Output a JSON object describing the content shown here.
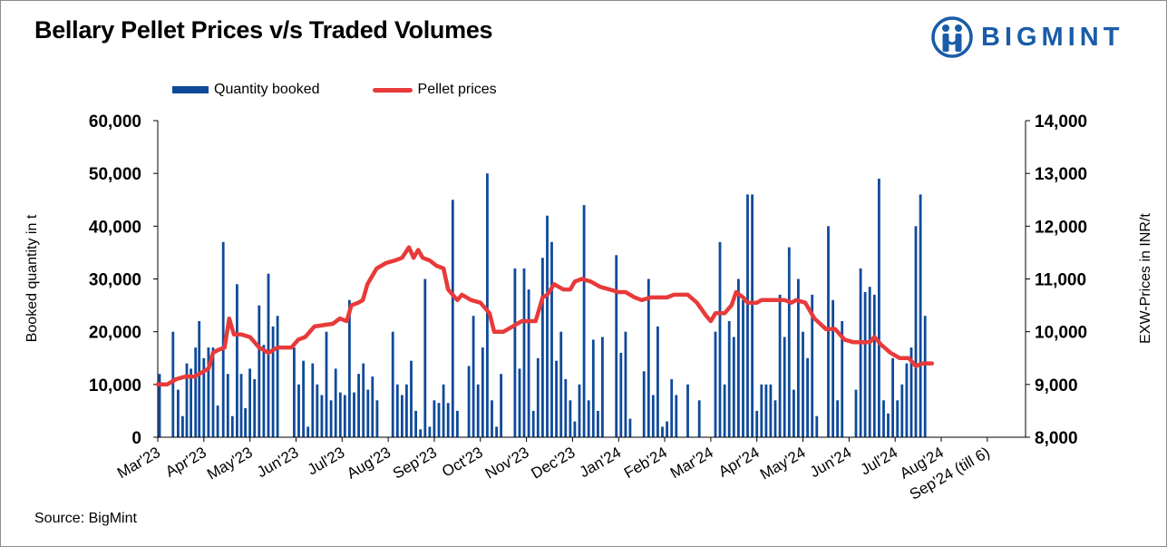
{
  "title": "Bellary Pellet Prices v/s Traded Volumes",
  "logo": {
    "text": "BIGMINT",
    "icon": "bigmint-logo-icon",
    "color": "#1a5ca8"
  },
  "source": "Source: BigMint",
  "colors": {
    "bars": "#0e4a9a",
    "line": "#e83a3a"
  },
  "chart_data": {
    "type": "bar",
    "title": "Bellary Pellet Prices v/s Traded Volumes",
    "legend": {
      "position": "top-left",
      "entries": [
        "Quantity booked",
        "Pellet prices"
      ]
    },
    "y_left": {
      "label": "Booked quantity in t",
      "ylim": [
        0,
        60000
      ],
      "ticks": [
        "0",
        "10,000",
        "20,000",
        "30,000",
        "40,000",
        "50,000",
        "60,000"
      ]
    },
    "y_right": {
      "label": "EXW-Prices in INR/t",
      "ylim": [
        8000,
        14000
      ],
      "ticks": [
        "8,000",
        "9,000",
        "10,000",
        "11,000",
        "12,000",
        "13,000",
        "14,000"
      ]
    },
    "x_ticks": [
      "Mar'23",
      "Apr'23",
      "May'23",
      "Jun'23",
      "Jul'23",
      "Aug'23",
      "Sep'23",
      "Oct'23",
      "Nov'23",
      "Dec'23",
      "Jan'24",
      "Feb'24",
      "Mar'24",
      "Apr'24",
      "May'24",
      "Jun'24",
      "Jul'24",
      "Aug'24",
      "Sep'24 (till 6)"
    ],
    "x_range": [
      0,
      18.83
    ],
    "series": [
      {
        "name": "Quantity booked",
        "type": "bar",
        "axis": "left",
        "points": [
          [
            0.04,
            12000
          ],
          [
            0.33,
            20000
          ],
          [
            0.44,
            9000
          ],
          [
            0.54,
            4000
          ],
          [
            0.63,
            14000
          ],
          [
            0.72,
            13000
          ],
          [
            0.82,
            17000
          ],
          [
            0.9,
            22000
          ],
          [
            1.0,
            15000
          ],
          [
            1.1,
            17000
          ],
          [
            1.2,
            17000
          ],
          [
            1.3,
            6000
          ],
          [
            1.42,
            37000
          ],
          [
            1.52,
            12000
          ],
          [
            1.62,
            4000
          ],
          [
            1.72,
            29000
          ],
          [
            1.81,
            12000
          ],
          [
            1.9,
            5500
          ],
          [
            2.0,
            13000
          ],
          [
            2.1,
            11000
          ],
          [
            2.2,
            25000
          ],
          [
            2.3,
            17500
          ],
          [
            2.4,
            31000
          ],
          [
            2.5,
            21000
          ],
          [
            2.6,
            23000
          ],
          [
            2.96,
            17000
          ],
          [
            3.06,
            10000
          ],
          [
            3.16,
            14500
          ],
          [
            3.26,
            2000
          ],
          [
            3.36,
            14000
          ],
          [
            3.46,
            10000
          ],
          [
            3.56,
            8000
          ],
          [
            3.66,
            20000
          ],
          [
            3.76,
            7000
          ],
          [
            3.86,
            13000
          ],
          [
            3.96,
            8500
          ],
          [
            4.06,
            8000
          ],
          [
            4.16,
            26000
          ],
          [
            4.26,
            8500
          ],
          [
            4.36,
            12000
          ],
          [
            4.46,
            14000
          ],
          [
            4.56,
            9000
          ],
          [
            4.66,
            11500
          ],
          [
            4.76,
            7000
          ],
          [
            5.1,
            20000
          ],
          [
            5.2,
            10000
          ],
          [
            5.3,
            8000
          ],
          [
            5.4,
            10000
          ],
          [
            5.5,
            14500
          ],
          [
            5.6,
            5000
          ],
          [
            5.7,
            1500
          ],
          [
            5.8,
            30000
          ],
          [
            5.9,
            2000
          ],
          [
            6.0,
            7000
          ],
          [
            6.1,
            6500
          ],
          [
            6.2,
            10000
          ],
          [
            6.3,
            6500
          ],
          [
            6.4,
            45000
          ],
          [
            6.5,
            5000
          ],
          [
            6.75,
            13500
          ],
          [
            6.85,
            23000
          ],
          [
            6.95,
            10000
          ],
          [
            7.05,
            17000
          ],
          [
            7.15,
            50000
          ],
          [
            7.25,
            7000
          ],
          [
            7.35,
            2000
          ],
          [
            7.45,
            12000
          ],
          [
            7.75,
            32000
          ],
          [
            7.85,
            13000
          ],
          [
            7.95,
            32000
          ],
          [
            8.05,
            28000
          ],
          [
            8.15,
            5000
          ],
          [
            8.25,
            15000
          ],
          [
            8.35,
            34000
          ],
          [
            8.45,
            42000
          ],
          [
            8.55,
            37000
          ],
          [
            8.65,
            14500
          ],
          [
            8.75,
            20000
          ],
          [
            8.85,
            11000
          ],
          [
            8.95,
            7000
          ],
          [
            9.05,
            3000
          ],
          [
            9.15,
            10000
          ],
          [
            9.25,
            44000
          ],
          [
            9.35,
            7000
          ],
          [
            9.45,
            18500
          ],
          [
            9.55,
            5000
          ],
          [
            9.65,
            19000
          ],
          [
            9.95,
            34500
          ],
          [
            10.05,
            16000
          ],
          [
            10.15,
            20000
          ],
          [
            10.25,
            3500
          ],
          [
            10.55,
            12500
          ],
          [
            10.65,
            30000
          ],
          [
            10.75,
            8000
          ],
          [
            10.85,
            21000
          ],
          [
            10.95,
            2000
          ],
          [
            11.05,
            3000
          ],
          [
            11.15,
            11000
          ],
          [
            11.25,
            8000
          ],
          [
            11.5,
            10000
          ],
          [
            11.75,
            7000
          ],
          [
            12.1,
            20000
          ],
          [
            12.2,
            37000
          ],
          [
            12.3,
            10000
          ],
          [
            12.4,
            22000
          ],
          [
            12.5,
            19000
          ],
          [
            12.6,
            30000
          ],
          [
            12.7,
            26000
          ],
          [
            12.8,
            46000
          ],
          [
            12.9,
            46000
          ],
          [
            13.0,
            5000
          ],
          [
            13.1,
            10000
          ],
          [
            13.2,
            10000
          ],
          [
            13.3,
            10000
          ],
          [
            13.4,
            7000
          ],
          [
            13.5,
            27000
          ],
          [
            13.6,
            19000
          ],
          [
            13.7,
            36000
          ],
          [
            13.8,
            9000
          ],
          [
            13.9,
            30000
          ],
          [
            14.0,
            20000
          ],
          [
            14.1,
            15000
          ],
          [
            14.2,
            27000
          ],
          [
            14.3,
            4000
          ],
          [
            14.55,
            40000
          ],
          [
            14.65,
            26000
          ],
          [
            14.75,
            7000
          ],
          [
            14.85,
            22000
          ],
          [
            15.15,
            9000
          ],
          [
            15.25,
            32000
          ],
          [
            15.35,
            27500
          ],
          [
            15.45,
            28500
          ],
          [
            15.55,
            27000
          ],
          [
            15.65,
            49000
          ],
          [
            15.75,
            7000
          ],
          [
            15.85,
            4500
          ],
          [
            15.95,
            15000
          ],
          [
            16.05,
            7000
          ],
          [
            16.15,
            10000
          ],
          [
            16.25,
            14000
          ],
          [
            16.35,
            17000
          ],
          [
            16.45,
            40000
          ],
          [
            16.55,
            46000
          ],
          [
            16.65,
            23000
          ]
        ]
      },
      {
        "name": "Pellet prices",
        "type": "line",
        "axis": "right",
        "points": [
          [
            0,
            9000
          ],
          [
            0.2,
            9000
          ],
          [
            0.4,
            9100
          ],
          [
            0.6,
            9150
          ],
          [
            0.8,
            9150
          ],
          [
            1.0,
            9250
          ],
          [
            1.1,
            9300
          ],
          [
            1.2,
            9600
          ],
          [
            1.3,
            9650
          ],
          [
            1.45,
            9700
          ],
          [
            1.55,
            10250
          ],
          [
            1.65,
            9950
          ],
          [
            1.8,
            9950
          ],
          [
            2.0,
            9900
          ],
          [
            2.2,
            9700
          ],
          [
            2.4,
            9600
          ],
          [
            2.6,
            9700
          ],
          [
            2.9,
            9700
          ],
          [
            3.05,
            9850
          ],
          [
            3.2,
            9900
          ],
          [
            3.4,
            10100
          ],
          [
            3.8,
            10150
          ],
          [
            3.95,
            10250
          ],
          [
            4.1,
            10200
          ],
          [
            4.2,
            10500
          ],
          [
            4.35,
            10550
          ],
          [
            4.45,
            10600
          ],
          [
            4.55,
            10900
          ],
          [
            4.75,
            11200
          ],
          [
            4.95,
            11300
          ],
          [
            5.15,
            11350
          ],
          [
            5.3,
            11400
          ],
          [
            5.45,
            11600
          ],
          [
            5.55,
            11400
          ],
          [
            5.65,
            11550
          ],
          [
            5.75,
            11400
          ],
          [
            5.9,
            11350
          ],
          [
            6.05,
            11250
          ],
          [
            6.2,
            11200
          ],
          [
            6.3,
            10800
          ],
          [
            6.5,
            10600
          ],
          [
            6.6,
            10700
          ],
          [
            6.8,
            10600
          ],
          [
            7.0,
            10550
          ],
          [
            7.2,
            10350
          ],
          [
            7.3,
            10000
          ],
          [
            7.5,
            10000
          ],
          [
            7.6,
            10050
          ],
          [
            7.8,
            10150
          ],
          [
            7.9,
            10200
          ],
          [
            8.2,
            10200
          ],
          [
            8.35,
            10650
          ],
          [
            8.45,
            10700
          ],
          [
            8.6,
            10900
          ],
          [
            8.8,
            10800
          ],
          [
            8.95,
            10800
          ],
          [
            9.05,
            10950
          ],
          [
            9.2,
            11000
          ],
          [
            9.4,
            10950
          ],
          [
            9.6,
            10850
          ],
          [
            9.8,
            10800
          ],
          [
            10.0,
            10750
          ],
          [
            10.15,
            10750
          ],
          [
            10.35,
            10650
          ],
          [
            10.5,
            10600
          ],
          [
            10.7,
            10650
          ],
          [
            10.9,
            10650
          ],
          [
            11.05,
            10650
          ],
          [
            11.2,
            10700
          ],
          [
            11.5,
            10700
          ],
          [
            11.7,
            10550
          ],
          [
            11.9,
            10300
          ],
          [
            12.0,
            10200
          ],
          [
            12.1,
            10350
          ],
          [
            12.3,
            10350
          ],
          [
            12.45,
            10500
          ],
          [
            12.55,
            10750
          ],
          [
            12.7,
            10650
          ],
          [
            12.8,
            10550
          ],
          [
            13.0,
            10550
          ],
          [
            13.1,
            10600
          ],
          [
            13.4,
            10600
          ],
          [
            13.6,
            10600
          ],
          [
            13.75,
            10550
          ],
          [
            13.85,
            10600
          ],
          [
            14.05,
            10550
          ],
          [
            14.25,
            10250
          ],
          [
            14.5,
            10050
          ],
          [
            14.7,
            10050
          ],
          [
            14.9,
            9850
          ],
          [
            15.1,
            9800
          ],
          [
            15.3,
            9800
          ],
          [
            15.45,
            9800
          ],
          [
            15.55,
            9900
          ],
          [
            15.7,
            9750
          ],
          [
            15.9,
            9600
          ],
          [
            16.1,
            9500
          ],
          [
            16.3,
            9500
          ],
          [
            16.45,
            9350
          ],
          [
            16.6,
            9400
          ],
          [
            16.8,
            9400
          ]
        ]
      }
    ]
  }
}
